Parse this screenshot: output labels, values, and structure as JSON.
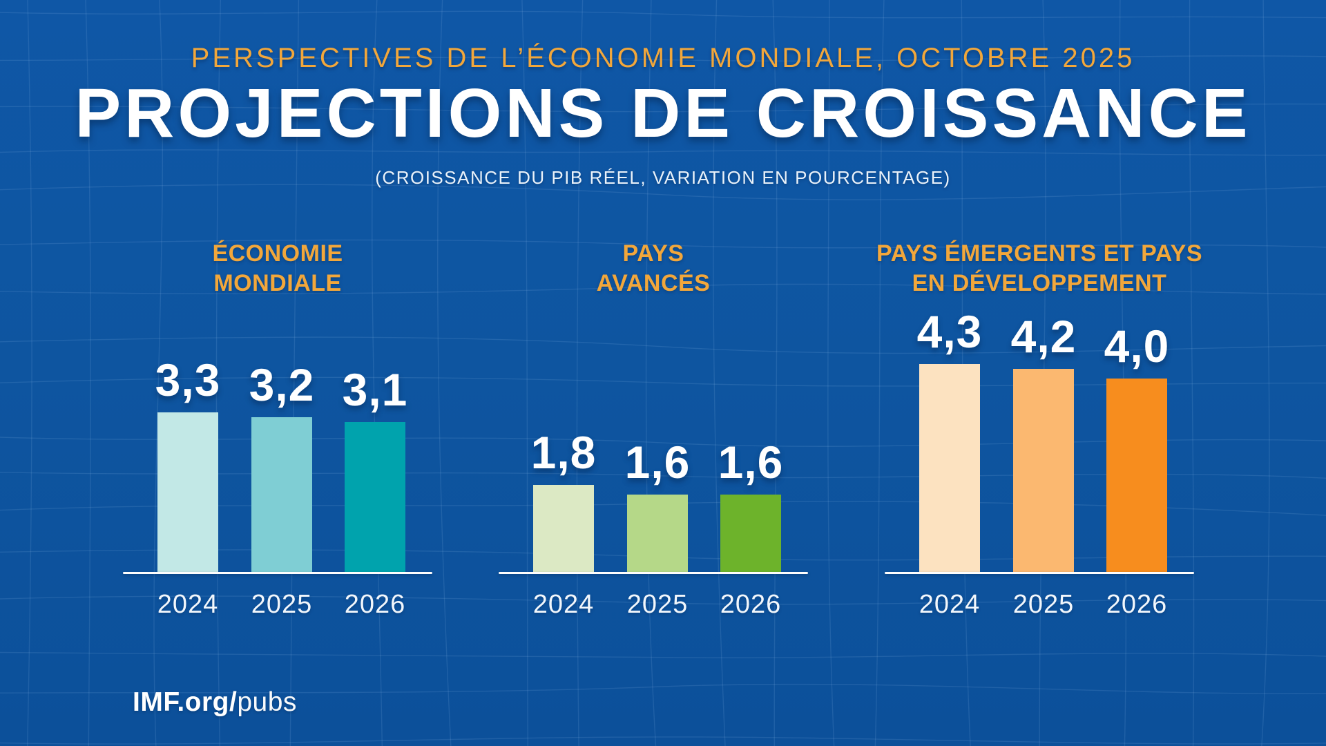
{
  "header": {
    "kicker": "PERSPECTIVES DE L’ÉCONOMIE MONDIALE, OCTOBRE 2025",
    "title": "PROJECTIONS DE CROISSANCE",
    "subtitle": "(CROISSANCE DU PIB RÉEL, VARIATION EN POURCENTAGE)"
  },
  "footer": {
    "brand_bold": "IMF.org/",
    "brand_light": "pubs"
  },
  "colors": {
    "background": "#0E55A0",
    "mesh_line": "#A9CDF4",
    "gold": "#F2A73B",
    "text_white": "#FFFFFF",
    "axis": "#FDFDFD"
  },
  "chart_data": {
    "type": "bar",
    "title": "Projections de croissance (croissance du PIB réel, variation en pourcentage)",
    "categories": [
      "2024",
      "2025",
      "2026"
    ],
    "ylim": [
      0,
      4.5
    ],
    "grid": false,
    "legend": "none",
    "value_label_style": "comma-decimal, above bar",
    "groups": [
      {
        "id": "world",
        "title_lines": [
          "ÉCONOMIE",
          "MONDIALE"
        ],
        "values": [
          3.3,
          3.2,
          3.1
        ],
        "value_labels": [
          "3,3",
          "3,2",
          "3,1"
        ],
        "bar_colors": [
          "#C2E8E6",
          "#7FCED4",
          "#00A3AD"
        ]
      },
      {
        "id": "advanced",
        "title_lines": [
          "PAYS",
          "AVANCÉS"
        ],
        "values": [
          1.8,
          1.6,
          1.6
        ],
        "value_labels": [
          "1,8",
          "1,6",
          "1,6"
        ],
        "bar_colors": [
          "#DCE9C4",
          "#B5D888",
          "#6DB32B"
        ]
      },
      {
        "id": "emerging",
        "title_lines": [
          "PAYS ÉMERGENTS ET PAYS",
          "EN DÉVELOPPEMENT"
        ],
        "values": [
          4.3,
          4.2,
          4.0
        ],
        "value_labels": [
          "4,3",
          "4,2",
          "4,0"
        ],
        "bar_colors": [
          "#FCE2C0",
          "#FBB870",
          "#F78D1E"
        ]
      }
    ]
  }
}
